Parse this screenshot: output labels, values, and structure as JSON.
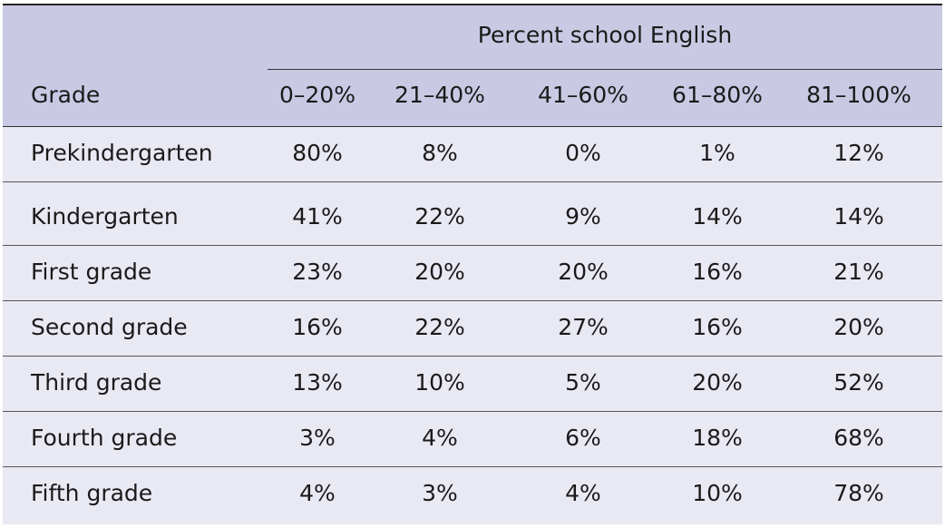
{
  "table": {
    "spanner": "Percent school English",
    "headers": [
      "Grade",
      "0–20%",
      "21–40%",
      "41–60%",
      "61–80%",
      "81–100%"
    ],
    "rows": [
      {
        "grade": "Prekindergarten",
        "values": [
          "80%",
          "8%",
          "0%",
          "1%",
          "12%"
        ]
      },
      {
        "grade": "Kindergarten",
        "values": [
          "41%",
          "22%",
          "9%",
          "14%",
          "14%"
        ]
      },
      {
        "grade": "First grade",
        "values": [
          "23%",
          "20%",
          "20%",
          "16%",
          "21%"
        ]
      },
      {
        "grade": "Second grade",
        "values": [
          "16%",
          "22%",
          "27%",
          "16%",
          "20%"
        ]
      },
      {
        "grade": "Third grade",
        "values": [
          "13%",
          "10%",
          "5%",
          "20%",
          "52%"
        ]
      },
      {
        "grade": "Fourth grade",
        "values": [
          "3%",
          "4%",
          "6%",
          "18%",
          "68%"
        ]
      },
      {
        "grade": "Fifth grade",
        "values": [
          "4%",
          "3%",
          "4%",
          "10%",
          "78%"
        ]
      }
    ]
  }
}
